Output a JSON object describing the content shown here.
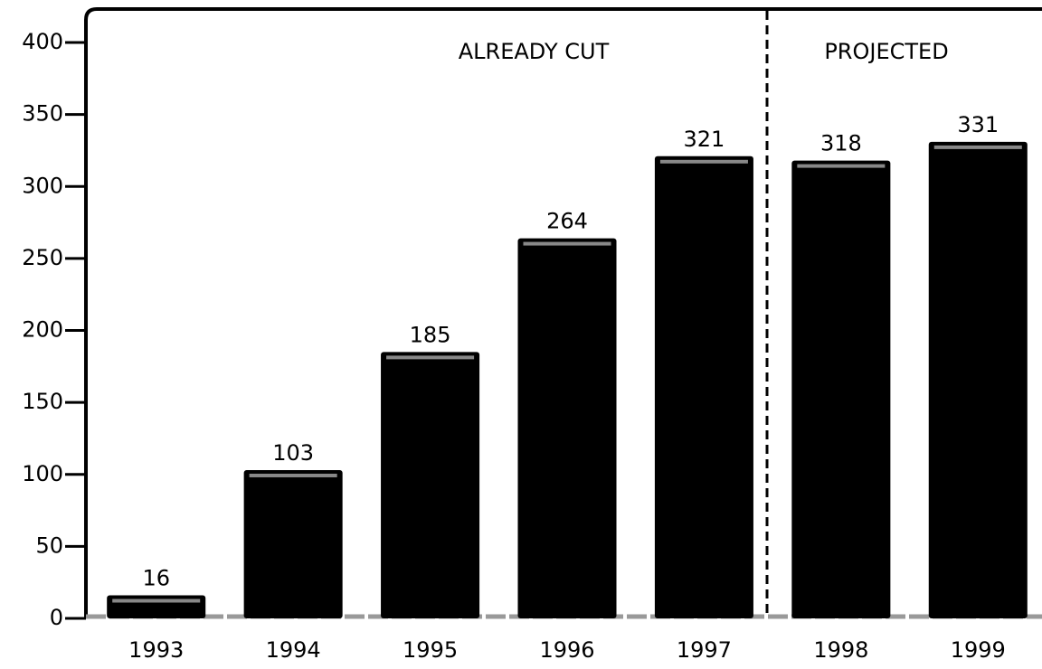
{
  "chart_data": {
    "type": "bar",
    "annotations": [
      "ALREADY CUT",
      "PROJECTED"
    ],
    "categories": [
      "1993",
      "1994",
      "1995",
      "1996",
      "1997",
      "1998",
      "1999"
    ],
    "values": [
      16,
      103,
      185,
      264,
      321,
      318,
      331
    ],
    "color": "#000000",
    "ylim": [
      0,
      400
    ],
    "yticks": [
      0,
      50,
      100,
      150,
      200,
      250,
      300,
      350,
      400
    ],
    "grid": false
  }
}
